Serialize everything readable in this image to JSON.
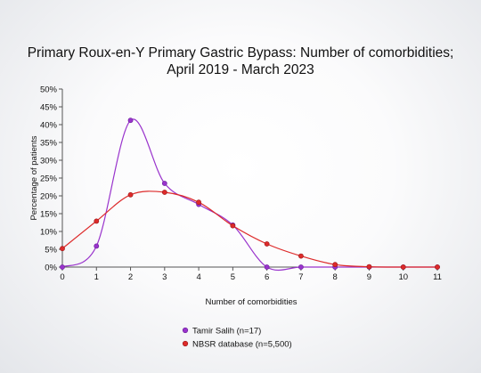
{
  "chart_data": {
    "type": "line",
    "title_lines": [
      "Primary Roux-en-Y Primary Gastric Bypass: Number of comorbidities;",
      "April 2019 - March 2023"
    ],
    "xlabel": "Number of comorbidities",
    "ylabel": "Percentage of patients",
    "x": [
      0,
      1,
      2,
      3,
      4,
      5,
      6,
      7,
      8,
      9,
      10,
      11
    ],
    "xlim": [
      0,
      11
    ],
    "ylim": [
      0,
      50
    ],
    "y_ticks": [
      "0%",
      "5%",
      "10%",
      "15%",
      "20%",
      "25%",
      "30%",
      "35%",
      "40%",
      "45%",
      "50%"
    ],
    "grid": false,
    "legend_position": "bottom",
    "series": [
      {
        "name": "Tamir Salih (n=17)",
        "color": "#9933cc",
        "values": [
          0,
          5.9,
          41.2,
          23.5,
          17.6,
          11.8,
          0,
          0,
          0,
          0,
          0,
          0
        ]
      },
      {
        "name": "NBSR database (n=5,500)",
        "color": "#dd2a2a",
        "values": [
          5.2,
          12.9,
          20.3,
          21.0,
          18.2,
          11.6,
          6.5,
          3.1,
          0.7,
          0.1,
          0.0,
          0.0
        ]
      }
    ]
  }
}
